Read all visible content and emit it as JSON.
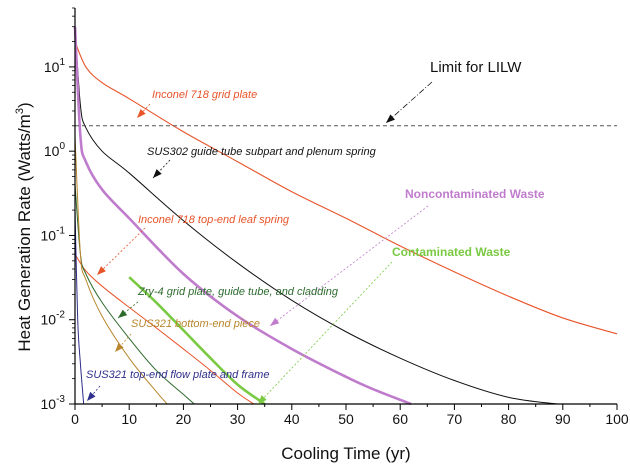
{
  "chart_data": {
    "type": "line",
    "title": "",
    "xlabel": "Cooling Time (yr)",
    "ylabel_main": "Heat Generation Rate (Watts/m",
    "ylabel_sup": "3",
    "ylabel_close": ")",
    "xlim": [
      0,
      100
    ],
    "ylim": [
      0.001,
      50
    ],
    "yscale": "log",
    "grid": false,
    "x_ticks": [
      "0",
      "10",
      "20",
      "30",
      "40",
      "50",
      "60",
      "70",
      "80",
      "90",
      "100"
    ],
    "y_ticks": [
      {
        "base": "10",
        "exp": "1"
      },
      {
        "base": "10",
        "exp": "0"
      },
      {
        "base": "10",
        "exp": "-1"
      },
      {
        "base": "10",
        "exp": "-2"
      },
      {
        "base": "10",
        "exp": "-3"
      }
    ],
    "limit_line": {
      "y": 2.0,
      "label": "Limit for LILW",
      "color": "#555555"
    },
    "series": [
      {
        "name": "Inconel 718 grid plate",
        "color": "#e8542a",
        "width": 1.1,
        "x": [
          0,
          2,
          5,
          10,
          20,
          30,
          40,
          50,
          60,
          70,
          80,
          90,
          100
        ],
        "y": [
          20,
          10,
          6.5,
          4.2,
          1.7,
          0.75,
          0.33,
          0.16,
          0.075,
          0.037,
          0.019,
          0.0105,
          0.0068
        ]
      },
      {
        "name": "SUS302 guide tube subpart and plenum spring",
        "color": "#111111",
        "width": 1.0,
        "x": [
          0,
          1,
          2,
          5,
          10,
          20,
          30,
          40,
          50,
          60,
          70,
          80,
          89
        ],
        "y": [
          30,
          3.5,
          1.9,
          1.0,
          0.55,
          0.15,
          0.047,
          0.017,
          0.0072,
          0.0035,
          0.0019,
          0.0012,
          0.001
        ]
      },
      {
        "name": "Noncontaminated Waste",
        "color": "#c07ccc",
        "width": 2.6,
        "x": [
          0,
          1,
          2,
          5,
          10,
          20,
          30,
          40,
          50,
          55,
          62
        ],
        "y": [
          30,
          1.5,
          0.75,
          0.35,
          0.16,
          0.035,
          0.011,
          0.0045,
          0.0021,
          0.0015,
          0.001
        ]
      },
      {
        "name": "Inconel 718 top-end leaf spring",
        "color": "#e8542a",
        "width": 1.0,
        "x": [
          0,
          2,
          5,
          10,
          15,
          20,
          25,
          30,
          33
        ],
        "y": [
          0.06,
          0.038,
          0.025,
          0.014,
          0.008,
          0.0045,
          0.0025,
          0.00135,
          0.001
        ]
      },
      {
        "name": "Contaminated Waste",
        "color": "#7ac943",
        "width": 2.6,
        "x": [
          10,
          15,
          20,
          25,
          30,
          35
        ],
        "y": [
          0.032,
          0.016,
          0.0075,
          0.0035,
          0.0017,
          0.001
        ]
      },
      {
        "name": "Zry-4 grid plate, guide tube, and cladding",
        "color": "#2e6b2e",
        "width": 1.0,
        "x": [
          0,
          1,
          2,
          5,
          10,
          15,
          20,
          22
        ],
        "y": [
          0.4,
          0.06,
          0.035,
          0.016,
          0.006,
          0.0025,
          0.0013,
          0.001
        ]
      },
      {
        "name": "SUS321 bottom-end piece",
        "color": "#b8862b",
        "width": 1.0,
        "x": [
          0,
          1,
          2,
          5,
          10,
          15,
          17
        ],
        "y": [
          1.5,
          0.06,
          0.03,
          0.011,
          0.0035,
          0.0014,
          0.001
        ]
      },
      {
        "name": "SUS321 top-end flow plate and frame",
        "color": "#2e2e8b",
        "width": 1.0,
        "x": [
          0,
          0.5,
          1,
          1.6
        ],
        "y": [
          0.2,
          0.01,
          0.003,
          0.001
        ]
      }
    ],
    "annotations": {
      "limit": "Limit for LILW",
      "inconel_grid": "Inconel 718 grid plate",
      "sus302": "SUS302 guide tube subpart and plenum spring",
      "noncontaminated": "Noncontaminated Waste",
      "inconel_leaf": "Inconel 718 top-end leaf spring",
      "contaminated": "Contaminated Waste",
      "zry4": "Zry-4 grid plate, guide tube, and cladding",
      "sus321_bottom": "SUS321 bottom-end piece",
      "sus321_top": "SUS321 top-end flow plate and frame"
    }
  }
}
